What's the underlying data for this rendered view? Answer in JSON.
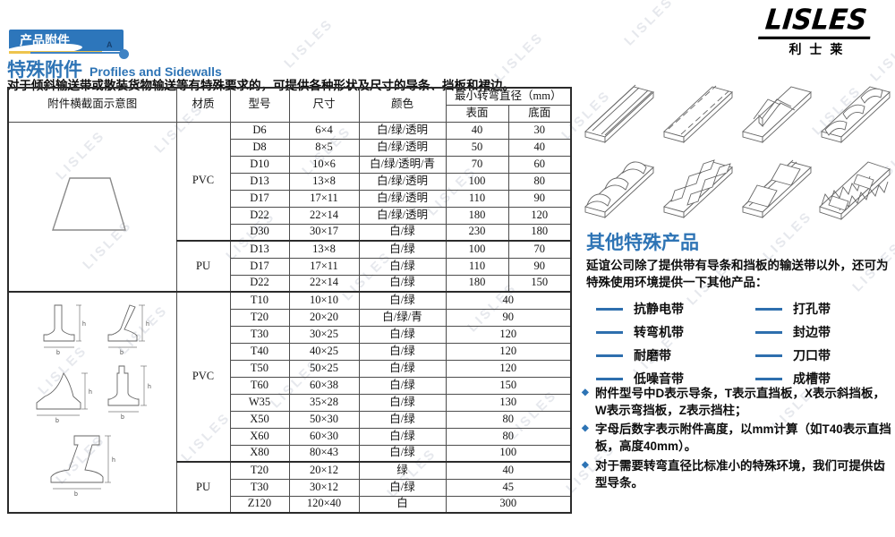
{
  "page": {
    "banner": "产品附件",
    "banner_marker": "A",
    "logo_en": "LISLES",
    "logo_cn": "利士莱",
    "watermark": "LISLES"
  },
  "header": {
    "title_cn": "特殊附件",
    "title_en": "Profiles and Sidewalls",
    "intro": "对于倾斜输送带或散装货物输送等有特殊要求的，可提供各种形状及尺寸的导条、挡板和裙边。"
  },
  "table": {
    "headers": {
      "diagram": "附件横截面示意图",
      "material": "材质",
      "model": "型号",
      "size": "尺寸",
      "color": "颜色",
      "diameter": "最小转弯直径（mm）",
      "surface": "表面",
      "bottom": "底面"
    },
    "groups": [
      {
        "diagram": "trapezoid-profile",
        "materials": [
          {
            "name": "PVC",
            "rows": [
              {
                "model": "D6",
                "size": "6×4",
                "color": "白/绿/透明",
                "surface": "40",
                "bottom": "30"
              },
              {
                "model": "D8",
                "size": "8×5",
                "color": "白/绿/透明",
                "surface": "50",
                "bottom": "40"
              },
              {
                "model": "D10",
                "size": "10×6",
                "color": "白/绿/透明/青",
                "surface": "70",
                "bottom": "60"
              },
              {
                "model": "D13",
                "size": "13×8",
                "color": "白/绿/透明",
                "surface": "100",
                "bottom": "80"
              },
              {
                "model": "D17",
                "size": "17×11",
                "color": "白/绿/透明",
                "surface": "110",
                "bottom": "90"
              },
              {
                "model": "D22",
                "size": "22×14",
                "color": "白/绿/透明",
                "surface": "180",
                "bottom": "120"
              },
              {
                "model": "D30",
                "size": "30×17",
                "color": "白/绿",
                "surface": "230",
                "bottom": "180"
              }
            ]
          },
          {
            "name": "PU",
            "rows": [
              {
                "model": "D13",
                "size": "13×8",
                "color": "白/绿",
                "surface": "100",
                "bottom": "70"
              },
              {
                "model": "D17",
                "size": "17×11",
                "color": "白/绿",
                "surface": "110",
                "bottom": "90"
              },
              {
                "model": "D22",
                "size": "22×14",
                "color": "白/绿",
                "surface": "180",
                "bottom": "150"
              }
            ]
          }
        ]
      },
      {
        "diagram": "cleat-profiles",
        "materials": [
          {
            "name": "PVC",
            "rows": [
              {
                "model": "T10",
                "size": "10×10",
                "color": "白/绿",
                "diameter": "40"
              },
              {
                "model": "T20",
                "size": "20×20",
                "color": "白/绿/青",
                "diameter": "90"
              },
              {
                "model": "T30",
                "size": "30×25",
                "color": "白/绿",
                "diameter": "120"
              },
              {
                "model": "T40",
                "size": "40×25",
                "color": "白/绿",
                "diameter": "120"
              },
              {
                "model": "T50",
                "size": "50×25",
                "color": "白/绿",
                "diameter": "120"
              },
              {
                "model": "T60",
                "size": "60×38",
                "color": "白/绿",
                "diameter": "150"
              },
              {
                "model": "W35",
                "size": "35×28",
                "color": "白/绿",
                "diameter": "130"
              },
              {
                "model": "X50",
                "size": "50×30",
                "color": "白/绿",
                "diameter": "80"
              },
              {
                "model": "X60",
                "size": "60×30",
                "color": "白/绿",
                "diameter": "80"
              },
              {
                "model": "X80",
                "size": "80×43",
                "color": "白/绿",
                "diameter": "100"
              }
            ]
          },
          {
            "name": "PU",
            "rows": [
              {
                "model": "T20",
                "size": "20×12",
                "color": "绿",
                "diameter": "40"
              },
              {
                "model": "T30",
                "size": "30×12",
                "color": "白/绿",
                "diameter": "45"
              },
              {
                "model": "Z120",
                "size": "120×40",
                "color": "白",
                "diameter": "300"
              }
            ]
          }
        ]
      }
    ]
  },
  "other_products": {
    "heading": "其他特殊产品",
    "intro": "延谊公司除了提供带有导条和挡板的输送带以外，还可为特殊使用环境提供一下其他产品：",
    "items_left": [
      "抗静电带",
      "转弯机带",
      "耐磨带",
      "低噪音带"
    ],
    "items_right": [
      "打孔带",
      "封边带",
      "刀口带",
      "成槽带"
    ]
  },
  "notes": [
    "附件型号中D表示导条，T表示直挡板，X表示斜挡板，W表示弯挡板，Z表示挡柱；",
    "字母后数字表示附件高度，以mm计算（如T40表示直挡板，高度40mm）。",
    "对于需要转弯直径比标准小的特殊环境，我们可提供齿型导条。"
  ],
  "diagram_labels": {
    "height": "h",
    "base": "b"
  },
  "colors": {
    "accent_blue": "#2e74b5",
    "banner_blue": "#2d76bb",
    "gold": "#eec44e"
  }
}
